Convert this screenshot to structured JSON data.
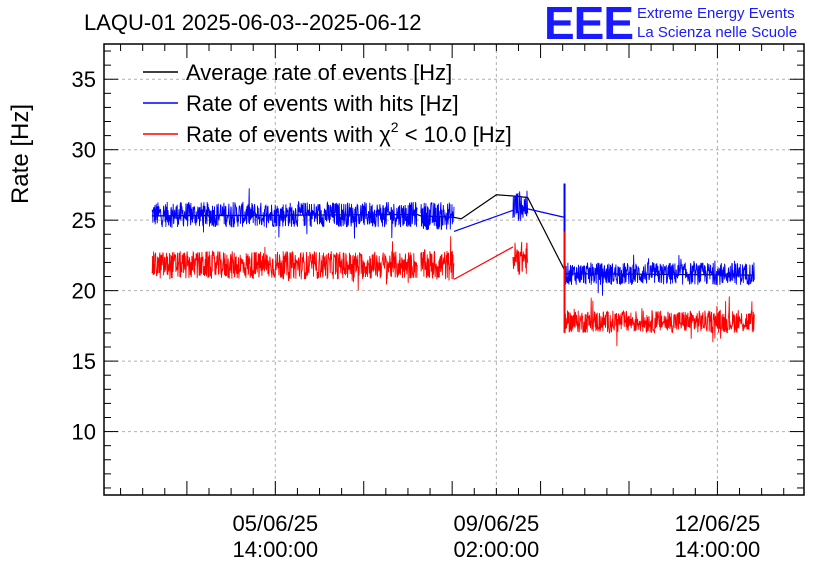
{
  "header": {
    "title": "LAQU-01 2025-06-03--2025-06-12",
    "logo_mark": "EEE",
    "logo_line1": "Extreme Energy Events",
    "logo_line2": "La Scienza nelle Scuole"
  },
  "colors": {
    "average": "#000000",
    "hits": "#0000ff",
    "chi2": "#ff0000",
    "grid": "#b0b0b0",
    "logo": "#1a1aff"
  },
  "chart_data": {
    "type": "line",
    "title": "LAQU-01 2025-06-03--2025-06-12",
    "ylabel": "Rate [Hz]",
    "xlabel": "",
    "ylim": [
      5.5,
      37.5
    ],
    "xlim_hours": [
      -14.5,
      175.5
    ],
    "yticks": [
      10,
      15,
      20,
      25,
      30,
      35
    ],
    "ytick_labels": [
      "10",
      "15",
      "20",
      "25",
      "30",
      "35"
    ],
    "xticks_hours": [
      32,
      92,
      152
    ],
    "xtick_labels": [
      [
        "05/06/25",
        "14:00:00"
      ],
      [
        "09/06/25",
        "02:00:00"
      ],
      [
        "12/06/25",
        "14:00:00"
      ]
    ],
    "grid": true,
    "legend_position": "top-left",
    "legend_label_prefix": "Rate of events with",
    "legend_label_suffix": "< 10.0 [Hz]",
    "legend_chi_symbol": "χ",
    "legend_chi_power": "2",
    "series": [
      {
        "name": "Average rate of events [Hz]",
        "color": "#000000",
        "style": "connected-segments",
        "points": [
          [
            -1.5,
            25.3
          ],
          [
            70.5,
            25.4
          ],
          [
            71.5,
            25.3
          ],
          [
            80.5,
            25.2
          ],
          [
            82.5,
            25.1
          ],
          [
            92,
            26.8
          ],
          [
            97.5,
            26.7
          ],
          [
            100.5,
            26.6
          ],
          [
            111,
            21.2
          ],
          [
            162,
            21.1
          ]
        ]
      },
      {
        "name": "Rate of events with hits [Hz]",
        "color": "#0000ff",
        "style": "noisy-band",
        "segments": [
          {
            "start": -1.5,
            "end": 70.5,
            "mean": 25.4,
            "spread": 0.9
          },
          {
            "start": 71.5,
            "end": 80.5,
            "mean": 25.3,
            "spread": 1.0
          },
          {
            "start": 96.5,
            "end": 100.5,
            "mean": 26.0,
            "spread": 1.1
          },
          {
            "start": 110.5,
            "end": 162.0,
            "mean": 21.2,
            "spread": 0.8
          }
        ],
        "connectors": [
          [
            80.5,
            24.2,
            96.5,
            25.7
          ],
          [
            100.5,
            25.8,
            110.5,
            25.2
          ]
        ],
        "spike": [
          110.5,
          20.2,
          27.6
        ]
      },
      {
        "name": "Rate of events with χ² < 10.0 [Hz]",
        "color": "#ff0000",
        "style": "noisy-band",
        "segments": [
          {
            "start": -1.5,
            "end": 70.5,
            "mean": 21.8,
            "spread": 1.0
          },
          {
            "start": 71.5,
            "end": 80.5,
            "mean": 21.8,
            "spread": 1.1
          },
          {
            "start": 96.5,
            "end": 100.5,
            "mean": 22.3,
            "spread": 1.2
          },
          {
            "start": 110.5,
            "end": 162.0,
            "mean": 17.8,
            "spread": 0.8
          }
        ],
        "connectors": [
          [
            80.5,
            20.8,
            96.5,
            23.1
          ]
        ],
        "spike": [
          110.5,
          17.0,
          24.2
        ]
      }
    ]
  }
}
